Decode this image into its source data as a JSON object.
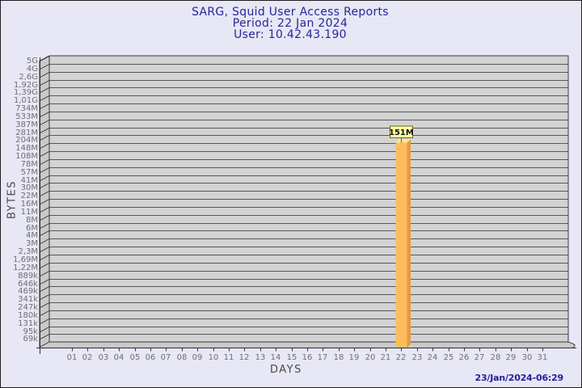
{
  "header": {
    "title": "SARG, Squid User Access Reports",
    "period": "Period: 22 Jan 2024",
    "user": "User: 10.42.43.190"
  },
  "footer": {
    "generated": "23/Jan/2024-06:29"
  },
  "chart_data": {
    "type": "bar",
    "title": "SARG, Squid User Access Reports",
    "subtitle": [
      "Period: 22 Jan 2024",
      "User: 10.42.43.190"
    ],
    "xlabel": "DAYS",
    "ylabel": "BYTES",
    "x_categories": [
      "01",
      "02",
      "03",
      "04",
      "05",
      "06",
      "07",
      "08",
      "09",
      "10",
      "11",
      "12",
      "13",
      "14",
      "15",
      "16",
      "17",
      "18",
      "19",
      "20",
      "21",
      "22",
      "23",
      "24",
      "25",
      "26",
      "27",
      "28",
      "29",
      "30",
      "31"
    ],
    "y_tick_labels": [
      "5G",
      "4G",
      "2,6G",
      "1,92G",
      "1,39G",
      "1,01G",
      "734M",
      "533M",
      "387M",
      "281M",
      "204M",
      "148M",
      "108M",
      "78M",
      "57M",
      "41M",
      "30M",
      "22M",
      "16M",
      "11M",
      "8M",
      "6M",
      "4M",
      "3M",
      "2,3M",
      "1,69M",
      "1,22M",
      "889k",
      "646k",
      "469k",
      "341k",
      "247k",
      "180k",
      "131k",
      "95k",
      "69k"
    ],
    "y_scale": "log",
    "ylim": [
      69000,
      5000000000
    ],
    "grid": true,
    "legend": "none",
    "bars": [
      {
        "day": "22",
        "label": "151M",
        "value_bytes": 151000000
      }
    ],
    "series": [
      {
        "name": "bytes",
        "values": [
          null,
          null,
          null,
          null,
          null,
          null,
          null,
          null,
          null,
          null,
          null,
          null,
          null,
          null,
          null,
          null,
          null,
          null,
          null,
          null,
          null,
          151000000,
          null,
          null,
          null,
          null,
          null,
          null,
          null,
          null,
          null
        ]
      }
    ],
    "colors": {
      "background": "#e7e7f5",
      "title_text": "#26269b",
      "plot_face": "#d3d3d3",
      "plot_side": "#c9c9c9",
      "gridline": "#575757",
      "frame": "#3a3a3a",
      "tick_text": "#6f6f6f",
      "axis_text": "#4a4a4a",
      "bar_front": "#fbbd5e",
      "bar_side": "#e89a3c",
      "bar_top": "#ffe48f",
      "callout_bg": "#ffffa0",
      "callout_border": "#6b6b1a",
      "callout_text": "#111111"
    }
  }
}
